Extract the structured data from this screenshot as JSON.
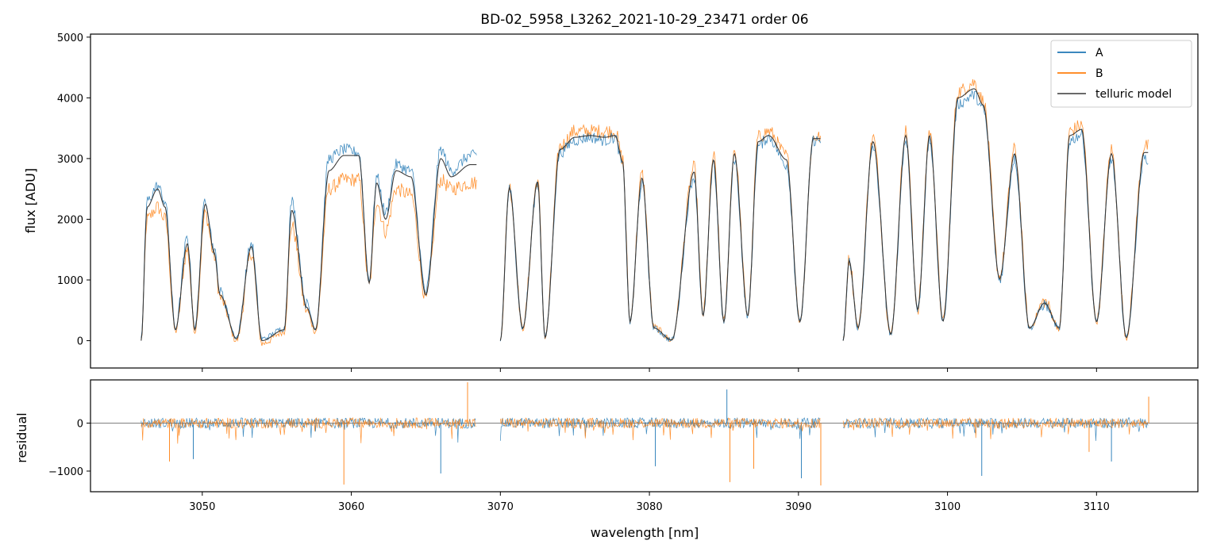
{
  "chart_data": [
    {
      "type": "line",
      "panel": "top",
      "title": "BD-02_5958_L3262_2021-10-29_23471  order 06",
      "xlabel": "",
      "ylabel": "flux [ADU]",
      "xlim": [
        3042.5,
        3116.8
      ],
      "ylim": [
        -450,
        5050
      ],
      "yticks": [
        "5000",
        "4000",
        "3000",
        "2000",
        "1000",
        "0"
      ],
      "ytick_values": [
        5000,
        4000,
        3000,
        2000,
        1000,
        0
      ],
      "xtick_values": [
        3050,
        3060,
        3070,
        3080,
        3090,
        3100,
        3110
      ],
      "legend": {
        "placement": "top-right",
        "entries": [
          "A",
          "B",
          "telluric model"
        ]
      },
      "colors": {
        "A": "#1f77b4",
        "B": "#ff7f0e",
        "telluric model": "#333333"
      },
      "segments": [
        [
          3045.9,
          3068.4
        ],
        [
          3070.0,
          3091.5
        ],
        [
          3093.0,
          3113.5
        ]
      ],
      "series": [
        {
          "name": "A",
          "x": [
            3046.3,
            3047.0,
            3047.5,
            3048.2,
            3049.0,
            3049.5,
            3050.2,
            3050.8,
            3051.2,
            3052.3,
            3053.3,
            3054.0,
            3055.5,
            3056.0,
            3057.0,
            3057.6,
            3058.5,
            3059.5,
            3060.5,
            3061.2,
            3061.7,
            3062.3,
            3063.0,
            3064.0,
            3065.0,
            3066.0,
            3066.7,
            3068.0,
            3070.6,
            3071.5,
            3072.5,
            3073.0,
            3074.0,
            3075.0,
            3076.0,
            3077.0,
            3077.7,
            3078.2,
            3078.7,
            3079.5,
            3080.3,
            3081.5,
            3083.0,
            3083.6,
            3084.3,
            3085.0,
            3085.7,
            3086.6,
            3087.3,
            3088.0,
            3089.2,
            3090.1,
            3091.0,
            3093.4,
            3094.0,
            3095.0,
            3096.2,
            3097.2,
            3098.0,
            3098.8,
            3099.7,
            3100.7,
            3101.8,
            3102.4,
            3103.5,
            3104.5,
            3105.5,
            3106.5,
            3107.5,
            3108.2,
            3109.0,
            3110.0,
            3111.0,
            3112.0,
            3113.2
          ],
          "y": [
            2300,
            2550,
            2300,
            200,
            1700,
            200,
            2350,
            1500,
            800,
            50,
            1600,
            30,
            200,
            2300,
            600,
            200,
            3000,
            3150,
            3100,
            1000,
            2700,
            2100,
            2900,
            2800,
            800,
            3150,
            2800,
            3050,
            2500,
            200,
            2600,
            50,
            3100,
            3300,
            3350,
            3300,
            3350,
            2900,
            300,
            2600,
            200,
            10,
            2700,
            400,
            2900,
            300,
            3000,
            400,
            3200,
            3350,
            2900,
            300,
            3300,
            1300,
            200,
            3200,
            100,
            3300,
            500,
            3300,
            300,
            3900,
            4050,
            3800,
            1000,
            3000,
            200,
            600,
            200,
            3300,
            3400,
            300,
            3000,
            50,
            3000
          ]
        },
        {
          "name": "B",
          "x": [
            3046.3,
            3047.0,
            3047.5,
            3048.2,
            3049.0,
            3049.5,
            3050.2,
            3050.8,
            3051.2,
            3052.3,
            3053.3,
            3054.0,
            3055.5,
            3056.0,
            3057.0,
            3057.6,
            3058.5,
            3059.5,
            3060.5,
            3061.2,
            3061.7,
            3062.3,
            3063.0,
            3064.0,
            3065.0,
            3066.0,
            3066.7,
            3068.0,
            3070.6,
            3071.5,
            3072.5,
            3073.0,
            3074.0,
            3075.0,
            3076.0,
            3077.0,
            3077.7,
            3078.2,
            3078.7,
            3079.5,
            3080.3,
            3081.5,
            3083.0,
            3083.6,
            3084.3,
            3085.0,
            3085.7,
            3086.6,
            3087.3,
            3088.0,
            3089.2,
            3090.1,
            3091.0,
            3093.4,
            3094.0,
            3095.0,
            3096.2,
            3097.2,
            3098.0,
            3098.8,
            3099.7,
            3100.7,
            3101.8,
            3102.4,
            3103.5,
            3104.5,
            3105.5,
            3106.5,
            3107.5,
            3108.2,
            3109.0,
            3110.0,
            3111.0,
            3112.0,
            3113.2
          ],
          "y": [
            2000,
            2200,
            2000,
            150,
            1500,
            150,
            2100,
            1400,
            700,
            0,
            1450,
            -50,
            150,
            1900,
            500,
            150,
            2500,
            2650,
            2650,
            900,
            2300,
            1800,
            2500,
            2400,
            700,
            2650,
            2500,
            2600,
            2550,
            200,
            2650,
            50,
            3200,
            3450,
            3450,
            3450,
            3450,
            3000,
            320,
            2750,
            220,
            10,
            2850,
            420,
            3050,
            320,
            3150,
            420,
            3350,
            3450,
            3050,
            320,
            3350,
            1350,
            220,
            3350,
            110,
            3450,
            520,
            3450,
            330,
            4100,
            4250,
            3950,
            1050,
            3150,
            210,
            650,
            210,
            3450,
            3550,
            320,
            3150,
            50,
            3200
          ]
        },
        {
          "name": "telluric model",
          "x": [
            3046.3,
            3047.0,
            3047.5,
            3048.2,
            3049.0,
            3049.5,
            3050.2,
            3050.8,
            3051.2,
            3052.3,
            3053.3,
            3054.0,
            3055.5,
            3056.0,
            3057.0,
            3057.6,
            3058.5,
            3059.5,
            3060.5,
            3061.2,
            3061.7,
            3062.3,
            3063.0,
            3064.0,
            3065.0,
            3066.0,
            3066.7,
            3068.0,
            3070.6,
            3071.5,
            3072.5,
            3073.0,
            3074.0,
            3075.0,
            3076.0,
            3077.0,
            3077.7,
            3078.2,
            3078.7,
            3079.5,
            3080.3,
            3081.5,
            3083.0,
            3083.6,
            3084.3,
            3085.0,
            3085.7,
            3086.6,
            3087.3,
            3088.0,
            3089.2,
            3090.1,
            3091.0,
            3093.4,
            3094.0,
            3095.0,
            3096.2,
            3097.2,
            3098.0,
            3098.8,
            3099.7,
            3100.7,
            3101.8,
            3102.4,
            3103.5,
            3104.5,
            3105.5,
            3106.5,
            3107.5,
            3108.2,
            3109.0,
            3110.0,
            3111.0,
            3112.0,
            3113.2
          ],
          "y": [
            2200,
            2500,
            2200,
            180,
            1600,
            180,
            2250,
            1450,
            750,
            30,
            1550,
            0,
            180,
            2150,
            550,
            180,
            2800,
            3050,
            3050,
            950,
            2600,
            2000,
            2800,
            2700,
            750,
            3000,
            2700,
            2900,
            2520,
            200,
            2620,
            50,
            3150,
            3350,
            3380,
            3350,
            3380,
            2950,
            310,
            2680,
            210,
            10,
            2780,
            410,
            2980,
            310,
            3080,
            410,
            3280,
            3380,
            2980,
            310,
            3330,
            1320,
            210,
            3280,
            105,
            3380,
            510,
            3380,
            320,
            4000,
            4150,
            3880,
            1020,
            3080,
            205,
            620,
            205,
            3380,
            3480,
            310,
            3080,
            50,
            3100
          ]
        }
      ]
    },
    {
      "type": "line",
      "panel": "bottom",
      "title": "",
      "xlabel": "wavelength [nm]",
      "ylabel": "residual",
      "xlim": [
        3042.5,
        3116.8
      ],
      "ylim": [
        -1430,
        900
      ],
      "yticks": [
        "0",
        "−1000"
      ],
      "ytick_values": [
        0,
        -1000
      ],
      "xticks": [
        "3050",
        "3060",
        "3070",
        "3080",
        "3090",
        "3100",
        "3110"
      ],
      "xtick_values": [
        3050,
        3060,
        3070,
        3080,
        3090,
        3100,
        3110
      ],
      "zero_line": true,
      "segments": [
        [
          3045.9,
          3068.4
        ],
        [
          3070.0,
          3091.5
        ],
        [
          3093.0,
          3113.5
        ]
      ],
      "series": [
        {
          "name": "A",
          "notable_points": {
            "x": [
              3049.4,
              3066.0,
              3085.2,
              3080.4,
              3090.2,
              3102.3,
              3111.0
            ],
            "y": [
              -750,
              -1050,
              700,
              -900,
              -1150,
              -1100,
              -800
            ]
          }
        },
        {
          "name": "B",
          "notable_points": {
            "x": [
              3047.8,
              3059.5,
              3067.8,
              3085.4,
              3087.0,
              3091.5,
              3109.5,
              3113.5
            ],
            "y": [
              -800,
              -1280,
              850,
              -1230,
              -950,
              -1300,
              -600,
              550
            ]
          }
        }
      ]
    }
  ]
}
